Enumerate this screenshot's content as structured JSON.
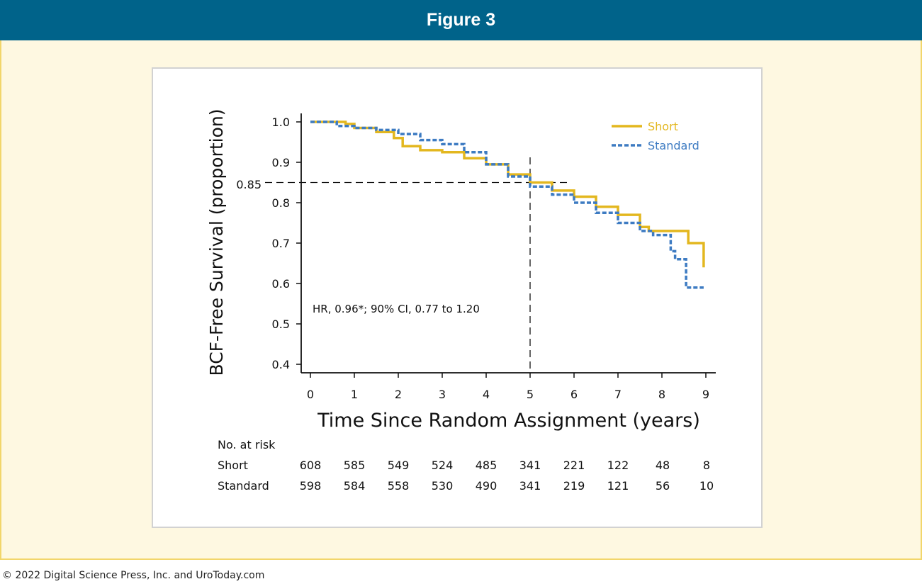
{
  "figure": {
    "title": "Figure 3"
  },
  "footer": {
    "copyright": "© 2022 Digital Science Press, Inc. and UroToday.com"
  },
  "colors": {
    "header_bg": "#00638a",
    "panel_bg": "#fef8e1",
    "panel_border": "#f2d66b",
    "short": "#e3b71f",
    "standard": "#3d7bc2"
  },
  "chart_data": {
    "type": "line",
    "ylabel": "BCF-Free Survival (proportion)",
    "xlabel": "Time Since Random Assignment (years)",
    "xlim": [
      0,
      9
    ],
    "ylim": [
      0.4,
      1.0
    ],
    "xticks": [
      "0",
      "1",
      "2",
      "3",
      "4",
      "5",
      "6",
      "7",
      "8",
      "9"
    ],
    "yticks": [
      "0.4",
      "0.5",
      "0.6",
      "0.7",
      "0.8",
      "0.9",
      "1.0"
    ],
    "reference": {
      "y": 0.85,
      "y_label": "0.85",
      "x": 5
    },
    "annotation": "HR, 0.96*; 90% CI, 0.77 to 1.20",
    "legend_position": "top-right",
    "series": [
      {
        "name": "Short",
        "style": "solid",
        "color": "#e3b71f",
        "points": [
          [
            0,
            1.0
          ],
          [
            0.8,
            0.995
          ],
          [
            1.0,
            0.985
          ],
          [
            1.5,
            0.975
          ],
          [
            1.9,
            0.96
          ],
          [
            2.1,
            0.94
          ],
          [
            2.5,
            0.93
          ],
          [
            3.0,
            0.925
          ],
          [
            3.5,
            0.91
          ],
          [
            4.0,
            0.895
          ],
          [
            4.5,
            0.87
          ],
          [
            5.0,
            0.85
          ],
          [
            5.5,
            0.83
          ],
          [
            6.0,
            0.815
          ],
          [
            6.5,
            0.79
          ],
          [
            7.0,
            0.77
          ],
          [
            7.5,
            0.74
          ],
          [
            7.7,
            0.73
          ],
          [
            8.6,
            0.73
          ],
          [
            8.6,
            0.7
          ],
          [
            8.95,
            0.7
          ],
          [
            8.95,
            0.64
          ]
        ]
      },
      {
        "name": "Standard",
        "style": "dashed",
        "color": "#3d7bc2",
        "points": [
          [
            0,
            1.0
          ],
          [
            0.6,
            0.99
          ],
          [
            1.0,
            0.985
          ],
          [
            1.5,
            0.98
          ],
          [
            2.0,
            0.97
          ],
          [
            2.5,
            0.955
          ],
          [
            3.0,
            0.945
          ],
          [
            3.5,
            0.925
          ],
          [
            4.0,
            0.895
          ],
          [
            4.5,
            0.865
          ],
          [
            5.0,
            0.84
          ],
          [
            5.5,
            0.82
          ],
          [
            6.0,
            0.8
          ],
          [
            6.5,
            0.775
          ],
          [
            7.0,
            0.75
          ],
          [
            7.5,
            0.73
          ],
          [
            7.8,
            0.72
          ],
          [
            8.1,
            0.72
          ],
          [
            8.2,
            0.68
          ],
          [
            8.3,
            0.66
          ],
          [
            8.55,
            0.66
          ],
          [
            8.55,
            0.59
          ],
          [
            8.95,
            0.59
          ]
        ]
      }
    ],
    "risk_table": {
      "title": "No. at risk",
      "rows": [
        {
          "label": "Short",
          "values": [
            "608",
            "585",
            "549",
            "524",
            "485",
            "341",
            "221",
            "122",
            "48",
            "8"
          ]
        },
        {
          "label": "Standard",
          "values": [
            "598",
            "584",
            "558",
            "530",
            "490",
            "341",
            "219",
            "121",
            "56",
            "10"
          ]
        }
      ]
    }
  }
}
